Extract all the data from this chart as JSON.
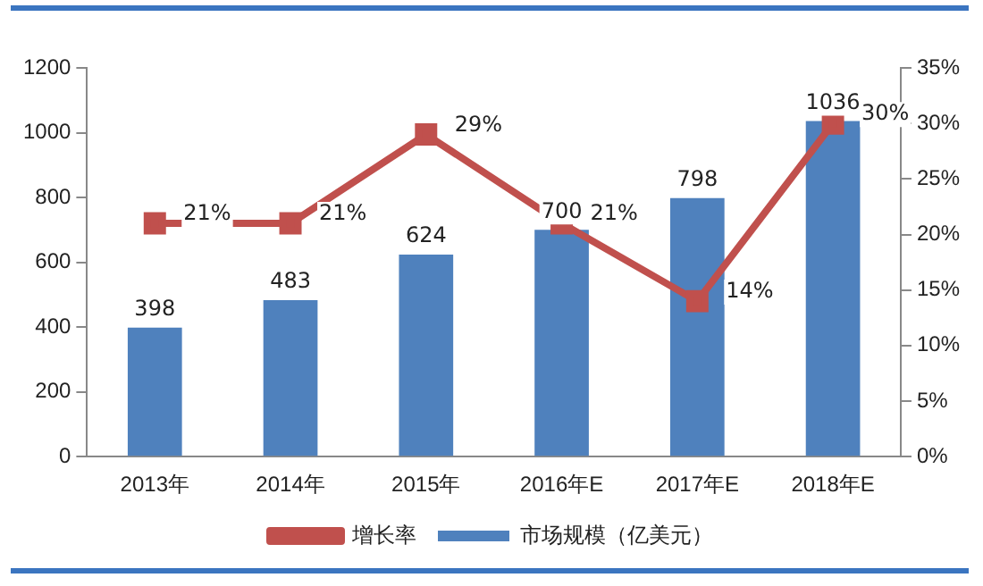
{
  "chart_data": {
    "type": "bar",
    "categories": [
      "2013年",
      "2014年",
      "2015年",
      "2016年E",
      "2017年E",
      "2018年E"
    ],
    "series": [
      {
        "name": "市场规模（亿美元）",
        "color": "#4f81bd",
        "values": [
          398,
          483,
          624,
          700,
          798,
          1036
        ],
        "value_labels": [
          "398",
          "483",
          "624",
          "700",
          "798",
          "1036"
        ]
      },
      {
        "name": "增长率",
        "type": "line",
        "axis": "y2",
        "color": "#c0504d",
        "values": [
          21,
          21,
          29,
          21,
          14,
          30
        ],
        "value_labels": [
          "21%",
          "21%",
          "29%",
          "21%",
          "14%",
          "30%"
        ]
      }
    ],
    "ylim": [
      0,
      1200
    ],
    "yticks": [
      0,
      200,
      400,
      600,
      800,
      1000,
      1200
    ],
    "y2lim": [
      0,
      35
    ],
    "y2ticks": [
      {
        "value": 0,
        "label": "0%"
      },
      {
        "value": 5,
        "label": "5%"
      },
      {
        "value": 10,
        "label": "10%"
      },
      {
        "value": 15,
        "label": "15%"
      },
      {
        "value": 20,
        "label": "20%"
      },
      {
        "value": 25,
        "label": "25%"
      },
      {
        "value": 30,
        "label": "30%"
      },
      {
        "value": 35,
        "label": "35%"
      }
    ],
    "grid": false,
    "legend": "bottom",
    "marker": "square",
    "line_style": "solid"
  }
}
